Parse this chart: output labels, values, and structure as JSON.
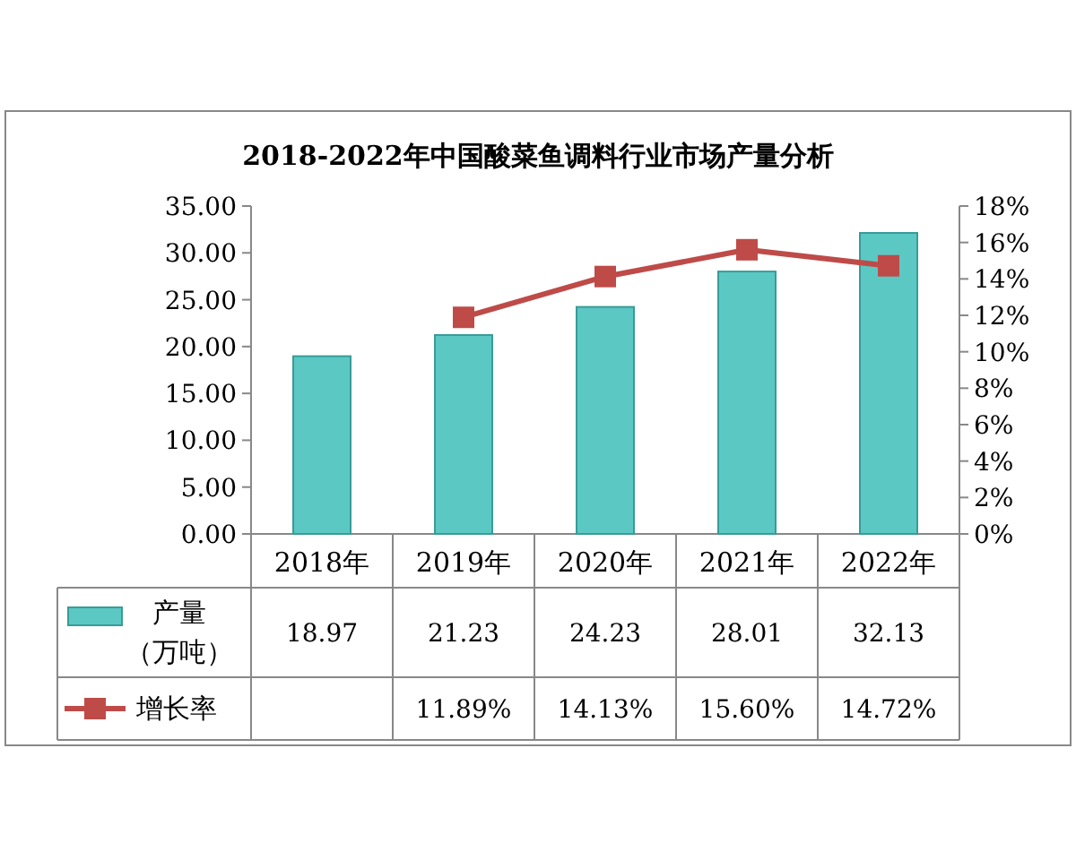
{
  "chart_data": {
    "type": "bar",
    "title": "2018-2022年中国酸菜鱼调料行业市场产量分析",
    "categories": [
      "2018年",
      "2019年",
      "2020年",
      "2021年",
      "2022年"
    ],
    "series": [
      {
        "name": "产量（万吨）",
        "color": "#5bc8c4",
        "values": [
          18.97,
          21.23,
          24.23,
          28.01,
          32.13
        ],
        "value_labels": [
          "18.97",
          "21.23",
          "24.23",
          "28.01",
          "32.13"
        ]
      },
      {
        "name": "增长率",
        "type": "line",
        "axis": "y2",
        "color": "#be4b48",
        "marker": "square",
        "values": [
          null,
          11.89,
          14.13,
          15.6,
          14.72
        ],
        "value_labels": [
          null,
          "11.89%",
          "14.13%",
          "15.60%",
          "14.72%"
        ]
      }
    ],
    "ylim": [
      0,
      35
    ],
    "yticks": [
      {
        "value": 0,
        "label": "0.00"
      },
      {
        "value": 5,
        "label": "5.00"
      },
      {
        "value": 10,
        "label": "10.00"
      },
      {
        "value": 15,
        "label": "15.00"
      },
      {
        "value": 20,
        "label": "20.00"
      },
      {
        "value": 25,
        "label": "25.00"
      },
      {
        "value": 30,
        "label": "30.00"
      },
      {
        "value": 35,
        "label": "35.00"
      }
    ],
    "y2lim": [
      0,
      18
    ],
    "y2ticks": [
      {
        "value": 0,
        "label": "0%"
      },
      {
        "value": 2,
        "label": "2%"
      },
      {
        "value": 4,
        "label": "4%"
      },
      {
        "value": 6,
        "label": "6%"
      },
      {
        "value": 8,
        "label": "8%"
      },
      {
        "value": 10,
        "label": "10%"
      },
      {
        "value": 12,
        "label": "12%"
      },
      {
        "value": 14,
        "label": "14%"
      },
      {
        "value": 16,
        "label": "16%"
      },
      {
        "value": 18,
        "label": "18%"
      }
    ],
    "legend": "bottom"
  }
}
